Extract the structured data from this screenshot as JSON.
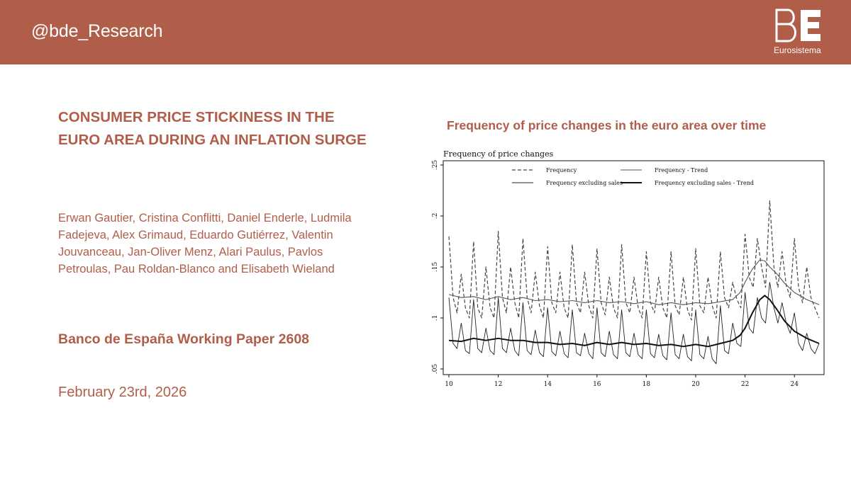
{
  "header": {
    "handle": "@bde_Research",
    "logo_letters": "BE",
    "logo_subtitle": "Eurosistema",
    "background_color": "#b05e49"
  },
  "paper": {
    "title": "CONSUMER PRICE STICKINESS IN THE EURO AREA DURING AN INFLATION SURGE",
    "authors": "Erwan Gautier, Cristina Conflitti, Daniel Enderle, Ludmila Fadejeva, Alex Grimaud, Eduardo Gutiérrez, Valentin Jouvanceau, Jan-Oliver Menz, Alari Paulus, Pavlos Petroulas, Pau Roldan-Blanco and Elisabeth Wieland",
    "working_paper": "Banco de España Working Paper 2608",
    "date": "February 23rd, 2026",
    "accent_color": "#b05e49"
  },
  "chart_heading": "Frequency of price changes in the euro area over time",
  "chart_data": {
    "type": "line",
    "title": "Frequency of price changes",
    "xlabel": "",
    "ylabel": "",
    "xlim": [
      10,
      25
    ],
    "ylim": [
      0.05,
      0.25
    ],
    "x_ticks": [
      "10",
      "12",
      "14",
      "16",
      "18",
      "20",
      "22",
      "24"
    ],
    "x_tick_values": [
      10,
      12,
      14,
      16,
      18,
      20,
      22,
      24
    ],
    "y_ticks": [
      ".05",
      ".1",
      ".15",
      ".2",
      ".25"
    ],
    "y_tick_values": [
      0.05,
      0.1,
      0.15,
      0.2,
      0.25
    ],
    "legend_position": "top",
    "grid": false,
    "series": [
      {
        "name": "Frequency",
        "style": "dashed",
        "x": [
          10.0,
          10.17,
          10.33,
          10.5,
          10.67,
          10.83,
          11.0,
          11.17,
          11.33,
          11.5,
          11.67,
          11.83,
          12.0,
          12.17,
          12.33,
          12.5,
          12.67,
          12.83,
          13.0,
          13.17,
          13.33,
          13.5,
          13.67,
          13.83,
          14.0,
          14.17,
          14.33,
          14.5,
          14.67,
          14.83,
          15.0,
          15.17,
          15.33,
          15.5,
          15.67,
          15.83,
          16.0,
          16.17,
          16.33,
          16.5,
          16.67,
          16.83,
          17.0,
          17.17,
          17.33,
          17.5,
          17.67,
          17.83,
          18.0,
          18.17,
          18.33,
          18.5,
          18.67,
          18.83,
          19.0,
          19.17,
          19.33,
          19.5,
          19.67,
          19.83,
          20.0,
          20.17,
          20.33,
          20.5,
          20.67,
          20.83,
          21.0,
          21.17,
          21.33,
          21.5,
          21.67,
          21.83,
          22.0,
          22.17,
          22.33,
          22.5,
          22.67,
          22.83,
          23.0,
          23.17,
          23.33,
          23.5,
          23.67,
          23.83,
          24.0,
          24.17,
          24.33,
          24.5,
          24.67,
          24.83,
          25.0
        ],
        "y": [
          0.18,
          0.12,
          0.105,
          0.143,
          0.11,
          0.1,
          0.175,
          0.11,
          0.1,
          0.15,
          0.11,
          0.1,
          0.185,
          0.12,
          0.105,
          0.15,
          0.115,
          0.1,
          0.178,
          0.12,
          0.105,
          0.145,
          0.112,
          0.1,
          0.17,
          0.115,
          0.105,
          0.145,
          0.11,
          0.1,
          0.172,
          0.115,
          0.105,
          0.145,
          0.112,
          0.1,
          0.168,
          0.115,
          0.103,
          0.14,
          0.11,
          0.1,
          0.172,
          0.115,
          0.105,
          0.14,
          0.11,
          0.1,
          0.165,
          0.115,
          0.105,
          0.14,
          0.11,
          0.1,
          0.165,
          0.112,
          0.103,
          0.14,
          0.108,
          0.098,
          0.168,
          0.112,
          0.105,
          0.14,
          0.112,
          0.1,
          0.165,
          0.12,
          0.11,
          0.135,
          0.118,
          0.11,
          0.182,
          0.14,
          0.13,
          0.178,
          0.15,
          0.13,
          0.215,
          0.15,
          0.13,
          0.165,
          0.132,
          0.12,
          0.178,
          0.13,
          0.115,
          0.15,
          0.12,
          0.11,
          0.1
        ]
      },
      {
        "name": "Frequency - Trend",
        "style": "solid-thin",
        "x": [
          10.0,
          10.5,
          11.0,
          11.5,
          12.0,
          12.5,
          13.0,
          13.5,
          14.0,
          14.5,
          15.0,
          15.5,
          16.0,
          16.5,
          17.0,
          17.5,
          18.0,
          18.5,
          19.0,
          19.5,
          20.0,
          20.5,
          21.0,
          21.5,
          21.8,
          22.0,
          22.3,
          22.6,
          22.8,
          23.0,
          23.3,
          23.6,
          24.0,
          24.5,
          25.0
        ],
        "y": [
          0.123,
          0.12,
          0.121,
          0.118,
          0.121,
          0.118,
          0.12,
          0.117,
          0.118,
          0.116,
          0.117,
          0.115,
          0.117,
          0.115,
          0.116,
          0.114,
          0.116,
          0.113,
          0.115,
          0.113,
          0.115,
          0.114,
          0.116,
          0.118,
          0.125,
          0.135,
          0.148,
          0.157,
          0.156,
          0.15,
          0.143,
          0.134,
          0.125,
          0.118,
          0.113
        ]
      },
      {
        "name": "Frequency excluding sales",
        "style": "solid-jagged",
        "x": [
          10.0,
          10.17,
          10.33,
          10.5,
          10.67,
          10.83,
          11.0,
          11.17,
          11.33,
          11.5,
          11.67,
          11.83,
          12.0,
          12.17,
          12.33,
          12.5,
          12.67,
          12.83,
          13.0,
          13.17,
          13.33,
          13.5,
          13.67,
          13.83,
          14.0,
          14.17,
          14.33,
          14.5,
          14.67,
          14.83,
          15.0,
          15.17,
          15.33,
          15.5,
          15.67,
          15.83,
          16.0,
          16.17,
          16.33,
          16.5,
          16.67,
          16.83,
          17.0,
          17.17,
          17.33,
          17.5,
          17.67,
          17.83,
          18.0,
          18.17,
          18.33,
          18.5,
          18.67,
          18.83,
          19.0,
          19.17,
          19.33,
          19.5,
          19.67,
          19.83,
          20.0,
          20.17,
          20.33,
          20.5,
          20.67,
          20.83,
          21.0,
          21.17,
          21.33,
          21.5,
          21.67,
          21.83,
          22.0,
          22.17,
          22.33,
          22.5,
          22.67,
          22.83,
          23.0,
          23.17,
          23.33,
          23.5,
          23.67,
          23.83,
          24.0,
          24.17,
          24.33,
          24.5,
          24.67,
          24.83,
          25.0
        ],
        "y": [
          0.12,
          0.075,
          0.07,
          0.095,
          0.068,
          0.065,
          0.118,
          0.07,
          0.066,
          0.09,
          0.068,
          0.064,
          0.12,
          0.07,
          0.066,
          0.09,
          0.068,
          0.063,
          0.115,
          0.068,
          0.064,
          0.088,
          0.066,
          0.062,
          0.11,
          0.067,
          0.063,
          0.087,
          0.065,
          0.061,
          0.108,
          0.066,
          0.063,
          0.085,
          0.065,
          0.06,
          0.11,
          0.066,
          0.062,
          0.087,
          0.064,
          0.06,
          0.108,
          0.066,
          0.062,
          0.085,
          0.064,
          0.06,
          0.108,
          0.065,
          0.061,
          0.084,
          0.063,
          0.059,
          0.105,
          0.064,
          0.06,
          0.084,
          0.062,
          0.058,
          0.108,
          0.064,
          0.06,
          0.082,
          0.06,
          0.055,
          0.112,
          0.068,
          0.065,
          0.095,
          0.075,
          0.072,
          0.125,
          0.09,
          0.085,
          0.12,
          0.1,
          0.095,
          0.135,
          0.11,
          0.095,
          0.115,
          0.095,
          0.085,
          0.105,
          0.075,
          0.068,
          0.085,
          0.07,
          0.065,
          0.075
        ]
      },
      {
        "name": "Frequency excluding sales - Trend",
        "style": "solid-thick",
        "x": [
          10.0,
          10.5,
          11.0,
          11.5,
          12.0,
          12.5,
          13.0,
          13.5,
          14.0,
          14.5,
          15.0,
          15.5,
          16.0,
          16.5,
          17.0,
          17.5,
          18.0,
          18.5,
          19.0,
          19.5,
          20.0,
          20.5,
          21.0,
          21.5,
          21.8,
          22.0,
          22.3,
          22.6,
          22.8,
          23.0,
          23.3,
          23.6,
          24.0,
          24.5,
          25.0
        ],
        "y": [
          0.078,
          0.077,
          0.08,
          0.078,
          0.08,
          0.078,
          0.078,
          0.076,
          0.076,
          0.074,
          0.075,
          0.073,
          0.076,
          0.074,
          0.076,
          0.074,
          0.075,
          0.073,
          0.074,
          0.072,
          0.074,
          0.072,
          0.075,
          0.078,
          0.083,
          0.09,
          0.105,
          0.118,
          0.122,
          0.118,
          0.108,
          0.097,
          0.087,
          0.08,
          0.075
        ]
      }
    ]
  }
}
